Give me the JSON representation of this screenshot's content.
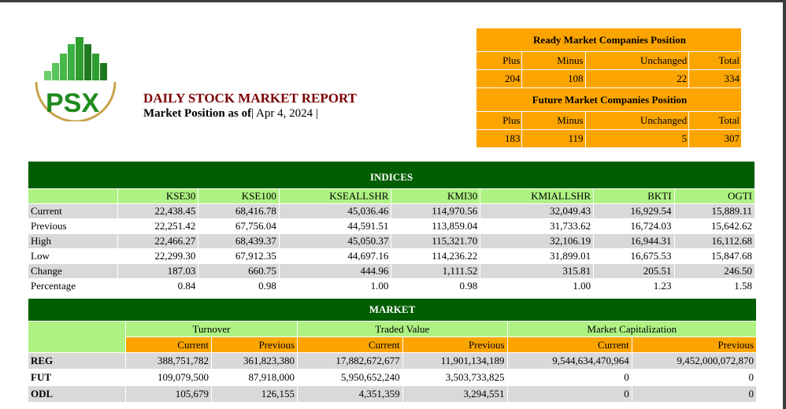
{
  "report": {
    "title": "DAILY STOCK MARKET REPORT",
    "subtitle_label": "Market Position as of",
    "subtitle_date": "| Apr 4, 2024 |",
    "logo_text": "PSX"
  },
  "ready_market": {
    "title": "Ready Market Companies Position",
    "headers": [
      "Plus",
      "Minus",
      "Unchanged",
      "Total"
    ],
    "values": [
      "204",
      "108",
      "22",
      "334"
    ]
  },
  "future_market": {
    "title": "Future Market Companies Position",
    "headers": [
      "Plus",
      "Minus",
      "Unchanged",
      "Total"
    ],
    "values": [
      "183",
      "119",
      "5",
      "307"
    ]
  },
  "indices": {
    "title": "INDICES",
    "columns": [
      "KSE30",
      "KSE100",
      "KSEALLSHR",
      "KMI30",
      "KMIALLSHR",
      "BKTI",
      "OGTI"
    ],
    "rows": [
      {
        "label": "Current",
        "values": [
          "22,438.45",
          "68,416.78",
          "45,036.46",
          "114,970.56",
          "32,049.43",
          "16,929.54",
          "15,889.11"
        ]
      },
      {
        "label": "Previous",
        "values": [
          "22,251.42",
          "67,756.04",
          "44,591.51",
          "113,859.04",
          "31,733.62",
          "16,724.03",
          "15,642.62"
        ]
      },
      {
        "label": "High",
        "values": [
          "22,466.27",
          "68,439.37",
          "45,050.37",
          "115,321.70",
          "32,106.19",
          "16,944.31",
          "16,112.68"
        ]
      },
      {
        "label": "Low",
        "values": [
          "22,299.30",
          "67,912.35",
          "44,697.16",
          "114,236.22",
          "31,899.01",
          "16,675.53",
          "15,847.68"
        ]
      },
      {
        "label": "Change",
        "values": [
          "187.03",
          "660.75",
          "444.96",
          "1,111.52",
          "315.81",
          "205.51",
          "246.50"
        ]
      },
      {
        "label": "Percentage",
        "values": [
          "0.84",
          "0.98",
          "1.00",
          "0.98",
          "1.00",
          "1.23",
          "1.58"
        ]
      }
    ]
  },
  "market": {
    "title": "MARKET",
    "groups": [
      "Turnover",
      "Traded Value",
      "Market Capitalization"
    ],
    "subheaders": [
      "Current",
      "Previous",
      "Current",
      "Previous",
      "Current",
      "Previous"
    ],
    "rows": [
      {
        "label": "REG",
        "values": [
          "388,751,782",
          "361,823,380",
          "17,882,672,677",
          "11,901,134,189",
          "9,544,634,470,964",
          "9,452,000,072,870"
        ]
      },
      {
        "label": "FUT",
        "values": [
          "109,079,500",
          "87,918,000",
          "5,950,652,240",
          "3,503,733,825",
          "0",
          "0"
        ]
      },
      {
        "label": "ODL",
        "values": [
          "105,679",
          "126,155",
          "4,351,359",
          "3,294,551",
          "0",
          "0"
        ]
      }
    ]
  },
  "colors": {
    "dark_green": "#005e00",
    "light_green": "#aef283",
    "orange": "#fca500",
    "grey": "#d9d9d9",
    "title_red": "#7b0000"
  }
}
